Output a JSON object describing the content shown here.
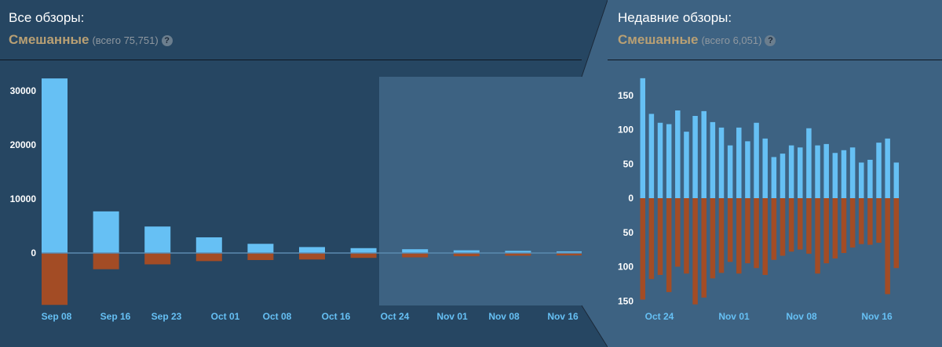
{
  "colors": {
    "positive": "#66c0f4",
    "negative": "#a34c25",
    "summary": "#b9a074",
    "axis_label": "#66c0f4"
  },
  "all_reviews": {
    "title": "Все обзоры:",
    "summary": "Смешанные",
    "total": "(всего 75,751)",
    "help": "?"
  },
  "recent_reviews": {
    "title": "Недавние обзоры:",
    "summary": "Смешанные",
    "total": "(всего 6,051)",
    "help": "?"
  },
  "chart_data": [
    {
      "type": "bar",
      "name": "all_reviews_histogram",
      "x_tick_labels": [
        "Sep 08",
        "Sep 16",
        "Sep 23",
        "Oct 01",
        "Oct 08",
        "Oct 16",
        "Oct 24",
        "Nov 01",
        "Nov 08",
        "Nov 16"
      ],
      "y_tick_labels": [
        "30000",
        "20000",
        "10000",
        "0"
      ],
      "ylim": [
        -9700,
        32400
      ],
      "highlight_range_bars": [
        7,
        10
      ],
      "series": [
        {
          "values": [
            32300,
            7700,
            4900,
            2900,
            1700,
            1100,
            900,
            700,
            500,
            400,
            300
          ]
        },
        {
          "values": [
            -9600,
            -3000,
            -2100,
            -1500,
            -1300,
            -1200,
            -900,
            -800,
            -600,
            -500,
            -450
          ]
        }
      ]
    },
    {
      "type": "bar",
      "name": "recent_reviews_histogram",
      "x_tick_labels": [
        "Oct 24",
        "Nov 01",
        "Nov 08",
        "Nov 16"
      ],
      "y_tick_labels": [
        "150",
        "100",
        "50",
        "0",
        "50",
        "100",
        "150"
      ],
      "ylim": [
        -150,
        175
      ],
      "series": [
        {
          "values": [
            175,
            123,
            110,
            108,
            128,
            97,
            120,
            127,
            111,
            103,
            77,
            103,
            83,
            110,
            87,
            60,
            65,
            77,
            74,
            102,
            77,
            79,
            66,
            70,
            74,
            52,
            56,
            81,
            87,
            52
          ]
        },
        {
          "values": [
            -148,
            -118,
            -112,
            -137,
            -100,
            -110,
            -155,
            -145,
            -117,
            -109,
            -93,
            -110,
            -95,
            -102,
            -112,
            -90,
            -84,
            -78,
            -75,
            -81,
            -110,
            -95,
            -88,
            -80,
            -72,
            -67,
            -68,
            -65,
            -140,
            -102
          ]
        }
      ]
    }
  ]
}
